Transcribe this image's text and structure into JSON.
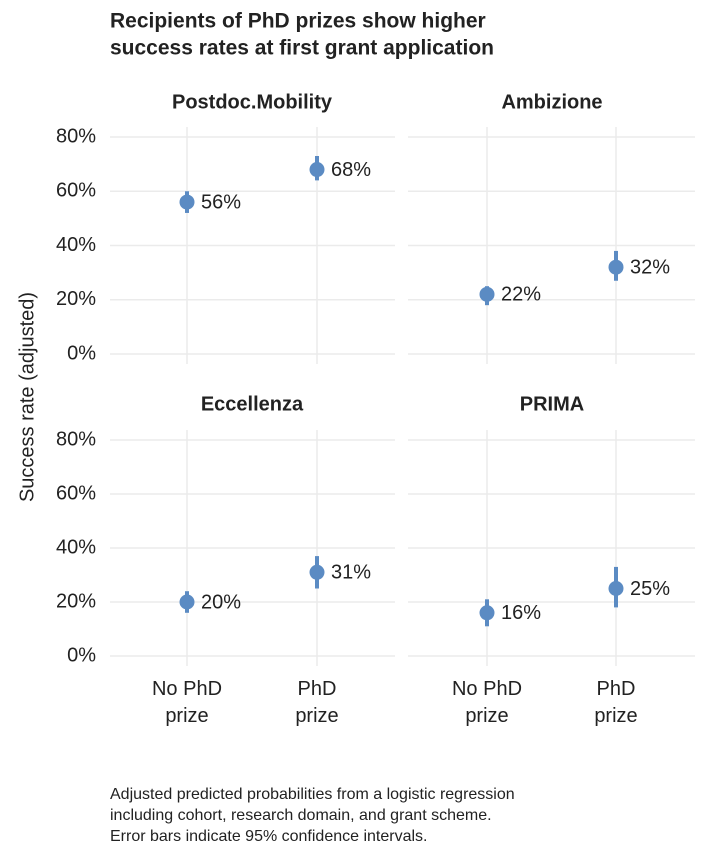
{
  "title": [
    "Recipients of PhD prizes show higher",
    "success rates at first grant application"
  ],
  "y_label": "Success rate (adjusted)",
  "caption": [
    "Adjusted predicted probabilities from a logistic regression",
    "including cohort, research domain, and grant scheme.",
    "Error bars indicate 95% confidence intervals."
  ],
  "chart_data": [
    {
      "type": "point",
      "title": "Postdoc.Mobility",
      "values": [
        56,
        68
      ],
      "value_labels": [
        "56%",
        "68%"
      ],
      "ci_low": [
        52,
        64
      ],
      "ci_high": [
        60,
        73
      ],
      "color": "#5b8bc3",
      "ylim": [
        0,
        80
      ],
      "yticks": [
        {
          "value": 0,
          "label": "0%"
        },
        {
          "value": 20,
          "label": "20%"
        },
        {
          "value": 40,
          "label": "40%"
        },
        {
          "value": 60,
          "label": "60%"
        },
        {
          "value": 80,
          "label": "80%"
        }
      ]
    },
    {
      "type": "point",
      "title": "Ambizione",
      "values": [
        22,
        32
      ],
      "value_labels": [
        "22%",
        "32%"
      ],
      "ci_low": [
        18,
        27
      ],
      "ci_high": [
        25,
        38
      ],
      "color": "#5b8bc3",
      "ylim": [
        0,
        80
      ],
      "yticks": [
        0,
        20,
        40,
        60,
        80
      ]
    },
    {
      "type": "point",
      "title": "Eccellenza",
      "categories": [
        "No PhD prize",
        "PhD prize"
      ],
      "values": [
        20,
        31
      ],
      "value_labels": [
        "20%",
        "31%"
      ],
      "ci_low": [
        16,
        25
      ],
      "ci_high": [
        24,
        37
      ],
      "color": "#5b8bc3",
      "ylim": [
        0,
        80
      ],
      "yticks": [
        {
          "value": 0,
          "label": "0%"
        },
        {
          "value": 20,
          "label": "20%"
        },
        {
          "value": 40,
          "label": "40%"
        },
        {
          "value": 60,
          "label": "60%"
        },
        {
          "value": 80,
          "label": "80%"
        }
      ]
    },
    {
      "type": "point",
      "title": "PRIMA",
      "categories": [
        "No PhD prize",
        "PhD prize"
      ],
      "values": [
        16,
        25
      ],
      "value_labels": [
        "16%",
        "25%"
      ],
      "ci_low": [
        11,
        18
      ],
      "ci_high": [
        21,
        33
      ],
      "color": "#5b8bc3",
      "ylim": [
        0,
        80
      ],
      "yticks": [
        0,
        20,
        40,
        60,
        80
      ]
    }
  ]
}
